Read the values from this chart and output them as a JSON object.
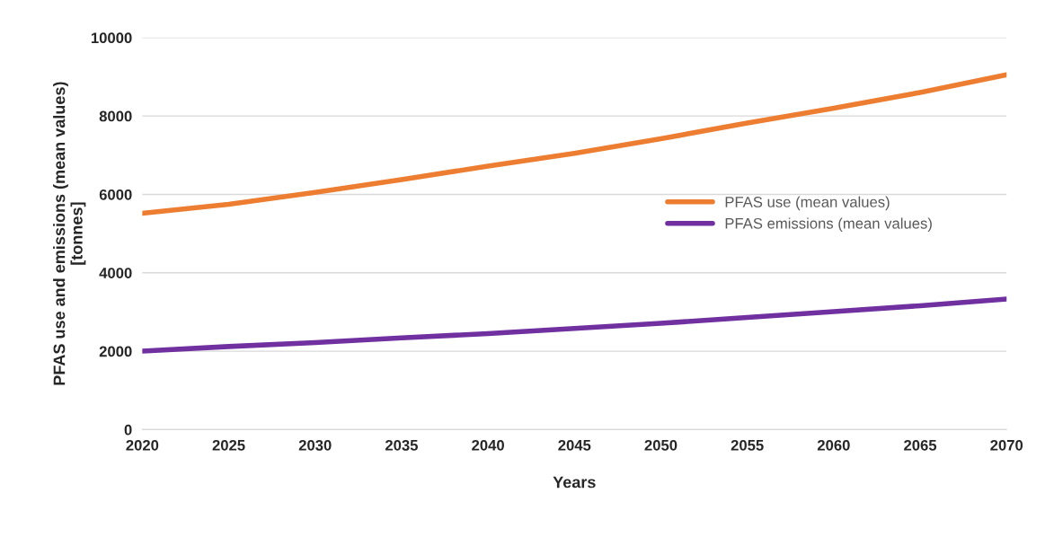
{
  "chart_data": {
    "type": "line",
    "xlabel": "Years",
    "ylabel": "PFAS use and emissions (mean values)\n[tonnes]",
    "x": [
      2020,
      2025,
      2030,
      2035,
      2040,
      2045,
      2050,
      2055,
      2060,
      2065,
      2070
    ],
    "series": [
      {
        "name": "PFAS use (mean values)",
        "color": "#ed7d31",
        "values": [
          5520,
          5750,
          6050,
          6380,
          6720,
          7050,
          7420,
          7820,
          8200,
          8600,
          9050
        ]
      },
      {
        "name": "PFAS emissions (mean values)",
        "color": "#7030a0",
        "values": [
          2000,
          2120,
          2220,
          2340,
          2450,
          2580,
          2710,
          2860,
          3010,
          3160,
          3330
        ]
      }
    ],
    "xlim": [
      2020,
      2070
    ],
    "xticks": [
      2020,
      2025,
      2030,
      2035,
      2040,
      2045,
      2050,
      2055,
      2060,
      2065,
      2070
    ],
    "ylim": [
      0,
      10000
    ],
    "yticks": [
      0,
      2000,
      4000,
      6000,
      8000,
      10000
    ],
    "grid": "y",
    "legend": "right",
    "marker": "none",
    "line_style": "solid"
  }
}
